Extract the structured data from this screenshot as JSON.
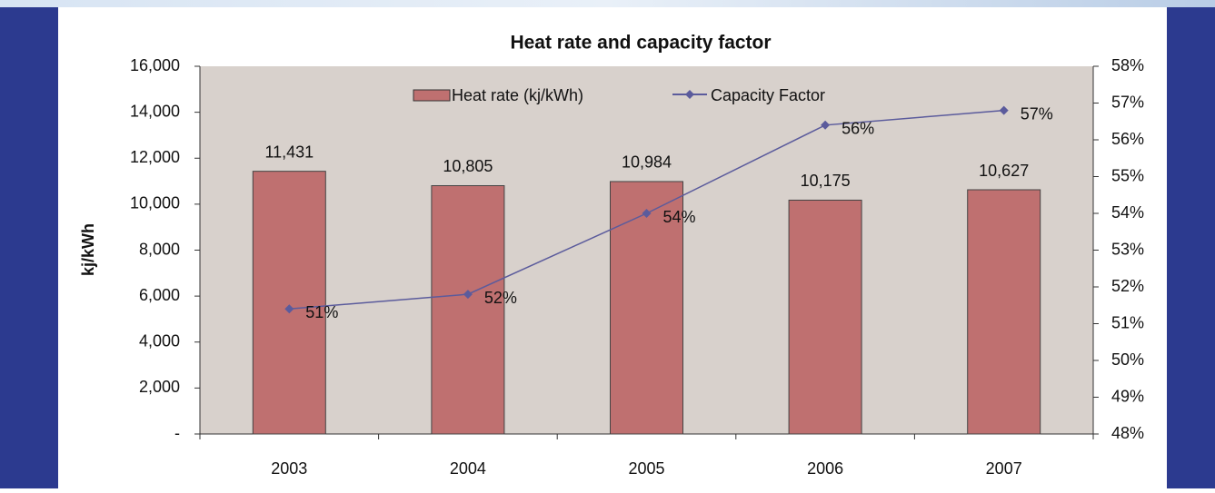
{
  "chart_data": {
    "type": "bar",
    "title": "Heat rate and capacity factor",
    "categories": [
      "2003",
      "2004",
      "2005",
      "2006",
      "2007"
    ],
    "ylabel": "kj/kWh",
    "series": [
      {
        "name": "Heat rate (kj/kWh)",
        "type": "bar",
        "color": "#bf7070",
        "values": [
          11431,
          10805,
          10984,
          10175,
          10627
        ],
        "value_labels": [
          "11,431",
          "10,805",
          "10,984",
          "10,175",
          "10,627"
        ]
      },
      {
        "name": "Capacity Factor",
        "type": "line",
        "axis": "y2",
        "color": "#5b5b9c",
        "values": [
          51.4,
          51.8,
          54.0,
          56.4,
          56.8
        ],
        "value_labels": [
          "51%",
          "52%",
          "54%",
          "56%",
          "57%"
        ]
      }
    ],
    "ylim": [
      0,
      16000
    ],
    "yticks": [
      {
        "value": 0,
        "label": "-"
      },
      {
        "value": 2000,
        "label": "2,000"
      },
      {
        "value": 4000,
        "label": "4,000"
      },
      {
        "value": 6000,
        "label": "6,000"
      },
      {
        "value": 8000,
        "label": "8,000"
      },
      {
        "value": 10000,
        "label": "10,000"
      },
      {
        "value": 12000,
        "label": "12,000"
      },
      {
        "value": 14000,
        "label": "14,000"
      },
      {
        "value": 16000,
        "label": "16,000"
      }
    ],
    "y2lim": [
      48,
      58
    ],
    "y2ticks": [
      {
        "value": 48,
        "label": "48%"
      },
      {
        "value": 49,
        "label": "49%"
      },
      {
        "value": 50,
        "label": "50%"
      },
      {
        "value": 51,
        "label": "51%"
      },
      {
        "value": 52,
        "label": "52%"
      },
      {
        "value": 53,
        "label": "53%"
      },
      {
        "value": 54,
        "label": "54%"
      },
      {
        "value": 55,
        "label": "55%"
      },
      {
        "value": 56,
        "label": "56%"
      },
      {
        "value": 57,
        "label": "57%"
      },
      {
        "value": 58,
        "label": "58%"
      }
    ],
    "grid": false
  }
}
